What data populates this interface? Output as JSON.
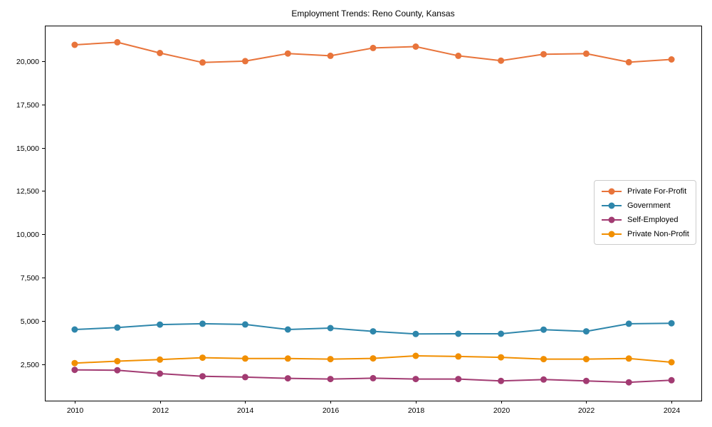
{
  "page": {
    "background_color": "#ffffff"
  },
  "chart_data": {
    "type": "line",
    "title": "Employment Trends: Reno County, Kansas",
    "xlabel": "",
    "ylabel": "",
    "x": [
      2010,
      2011,
      2012,
      2013,
      2014,
      2015,
      2016,
      2017,
      2018,
      2019,
      2020,
      2021,
      2022,
      2023,
      2024
    ],
    "series": [
      {
        "name": "Private For-Profit",
        "color": "#E8743B",
        "values": [
          20940,
          21090,
          20470,
          19920,
          20000,
          20440,
          20310,
          20760,
          20840,
          20310,
          20030,
          20400,
          20430,
          19940,
          20100
        ]
      },
      {
        "name": "Government",
        "color": "#2E86AB",
        "values": [
          4510,
          4620,
          4790,
          4840,
          4800,
          4510,
          4590,
          4400,
          4250,
          4260,
          4260,
          4500,
          4400,
          4840,
          4870
        ]
      },
      {
        "name": "Self-Employed",
        "color": "#A23B72",
        "values": [
          2180,
          2160,
          1960,
          1810,
          1760,
          1690,
          1650,
          1700,
          1650,
          1650,
          1540,
          1620,
          1540,
          1460,
          1580
        ]
      },
      {
        "name": "Private Non-Profit",
        "color": "#F18F01",
        "values": [
          2570,
          2680,
          2770,
          2880,
          2830,
          2830,
          2800,
          2840,
          2990,
          2950,
          2900,
          2800,
          2800,
          2830,
          2620
        ]
      }
    ],
    "x_ticks": [
      2010,
      2012,
      2014,
      2016,
      2018,
      2020,
      2022,
      2024
    ],
    "x_tick_labels": [
      "2010",
      "2012",
      "2014",
      "2016",
      "2018",
      "2020",
      "2022",
      "2024"
    ],
    "y_ticks": [
      2500,
      5000,
      7500,
      10000,
      12500,
      15000,
      17500,
      20000
    ],
    "y_tick_labels": [
      "2,500",
      "5,000",
      "7,500",
      "10,000",
      "12,500",
      "15,000",
      "17,500",
      "20,000"
    ],
    "xlim": [
      2009.3,
      2024.7
    ],
    "ylim": [
      400,
      22050
    ],
    "grid": false,
    "legend_position": "center right",
    "axis_color": "#000000",
    "legend_border_color": "#cccccc"
  }
}
